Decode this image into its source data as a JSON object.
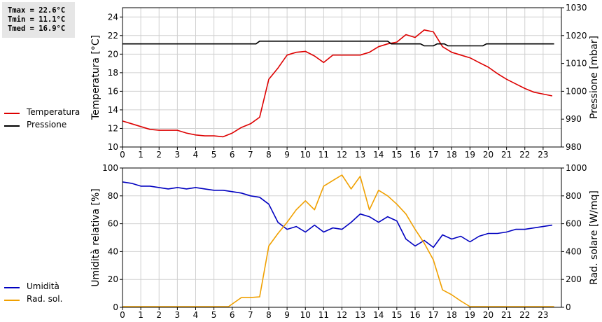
{
  "stats": {
    "tmax": "Tmax = 22.6°C",
    "tmin": "Tmin = 11.1°C",
    "tmed": "Tmed = 16.9°C"
  },
  "colors": {
    "temperature": "#dd0000",
    "pressure": "#000000",
    "humidity": "#0000c0",
    "radiation": "#f0a000",
    "grid": "#d0d0d0"
  },
  "chart_data": [
    {
      "type": "line",
      "title": "",
      "xlabel": "",
      "ylabel": "Temperatura [°C]",
      "y2label": "Pressione [mbar]",
      "xlim": [
        0,
        24
      ],
      "ylim": [
        10,
        25
      ],
      "y2lim": [
        980,
        1030
      ],
      "xticks": [
        "0",
        "1",
        "2",
        "3",
        "4",
        "5",
        "6",
        "7",
        "8",
        "9",
        "10",
        "11",
        "12",
        "13",
        "14",
        "15",
        "16",
        "17",
        "18",
        "19",
        "20",
        "21",
        "22",
        "23"
      ],
      "yticks": [
        "10",
        "12",
        "14",
        "16",
        "18",
        "20",
        "22",
        "24"
      ],
      "y2ticks": [
        "980",
        "990",
        "1000",
        "1010",
        "1020",
        "1030"
      ],
      "grid": true,
      "legend_position": "left",
      "series": [
        {
          "name": "Temperatura",
          "axis": "left",
          "color": "#dd0000",
          "x": [
            0,
            0.5,
            1,
            1.5,
            2,
            2.5,
            3,
            3.5,
            4,
            4.5,
            5,
            5.5,
            6,
            6.5,
            7,
            7.5,
            8,
            8.5,
            9,
            9.5,
            10,
            10.5,
            11,
            11.5,
            12,
            12.5,
            13,
            13.5,
            14,
            14.5,
            15,
            15.5,
            16,
            16.5,
            17,
            17.5,
            18,
            18.5,
            19,
            19.5,
            20,
            20.5,
            21,
            21.5,
            22,
            22.5,
            23,
            23.5
          ],
          "values": [
            12.8,
            12.5,
            12.2,
            11.9,
            11.8,
            11.8,
            11.8,
            11.5,
            11.3,
            11.2,
            11.2,
            11.1,
            11.5,
            12.1,
            12.5,
            13.2,
            17.3,
            18.5,
            19.9,
            20.2,
            20.3,
            19.8,
            19.1,
            19.9,
            19.9,
            19.9,
            19.9,
            20.2,
            20.8,
            21.1,
            21.3,
            22.1,
            21.8,
            22.6,
            22.4,
            20.8,
            20.2,
            19.9,
            19.6,
            19.1,
            18.6,
            17.9,
            17.3,
            16.8,
            16.3,
            15.9,
            15.7,
            15.5
          ]
        },
        {
          "name": "Pressione",
          "axis": "right",
          "color": "#000000",
          "x": [
            0,
            7.3,
            7.5,
            14.5,
            14.7,
            16.3,
            16.5,
            17.0,
            17.2,
            17.6,
            17.8,
            19.7,
            19.9,
            23.6
          ],
          "values": [
            1017,
            1017,
            1018,
            1018,
            1017,
            1017,
            1016.3,
            1016.3,
            1017,
            1017,
            1016.3,
            1016.3,
            1017,
            1017
          ]
        }
      ]
    },
    {
      "type": "line",
      "title": "",
      "xlabel": "",
      "ylabel": "Umidità relativa [%]",
      "y2label": "Rad. solare [W/mq]",
      "xlim": [
        0,
        24
      ],
      "ylim": [
        0,
        100
      ],
      "y2lim": [
        0,
        1000
      ],
      "xticks": [
        "0",
        "1",
        "2",
        "3",
        "4",
        "5",
        "6",
        "7",
        "8",
        "9",
        "10",
        "11",
        "12",
        "13",
        "14",
        "15",
        "16",
        "17",
        "18",
        "19",
        "20",
        "21",
        "22",
        "23"
      ],
      "yticks": [
        "0",
        "20",
        "40",
        "60",
        "80",
        "100"
      ],
      "y2ticks": [
        "0",
        "200",
        "400",
        "600",
        "800",
        "1000"
      ],
      "grid": true,
      "legend_position": "left",
      "series": [
        {
          "name": "Umidità",
          "axis": "left",
          "color": "#0000c0",
          "x": [
            0,
            0.5,
            1,
            1.5,
            2,
            2.5,
            3,
            3.5,
            4,
            4.5,
            5,
            5.5,
            6,
            6.5,
            7,
            7.5,
            8,
            8.5,
            9,
            9.5,
            10,
            10.5,
            11,
            11.5,
            12,
            12.5,
            13,
            13.5,
            14,
            14.5,
            15,
            15.5,
            16,
            16.5,
            17,
            17.5,
            18,
            18.5,
            19,
            19.5,
            20,
            20.5,
            21,
            21.5,
            22,
            22.5,
            23,
            23.5
          ],
          "values": [
            90,
            89,
            87,
            87,
            86,
            85,
            86,
            85,
            86,
            85,
            84,
            84,
            83,
            82,
            80,
            79,
            74,
            61,
            56,
            58,
            54,
            59,
            54,
            57,
            56,
            61,
            67,
            65,
            61,
            65,
            62,
            49,
            44,
            48,
            43,
            52,
            49,
            51,
            47,
            51,
            53,
            53,
            54,
            56,
            56,
            57,
            58,
            59
          ]
        },
        {
          "name": "Rad. sol.",
          "axis": "right",
          "color": "#f0a000",
          "x": [
            0,
            5.5,
            5.8,
            6.5,
            7,
            7.5,
            8,
            8.5,
            9,
            9.5,
            10,
            10.5,
            11,
            11.5,
            12,
            12.5,
            13,
            13.5,
            14,
            14.5,
            15,
            15.5,
            16,
            16.5,
            17,
            17.5,
            18,
            18.5,
            19,
            19.5,
            20,
            23.6
          ],
          "values": [
            5,
            5,
            5,
            70,
            70,
            75,
            440,
            530,
            610,
            700,
            765,
            700,
            870,
            910,
            950,
            850,
            940,
            700,
            840,
            800,
            740,
            670,
            560,
            460,
            340,
            125,
            90,
            45,
            5,
            5,
            5,
            5
          ]
        }
      ]
    }
  ]
}
